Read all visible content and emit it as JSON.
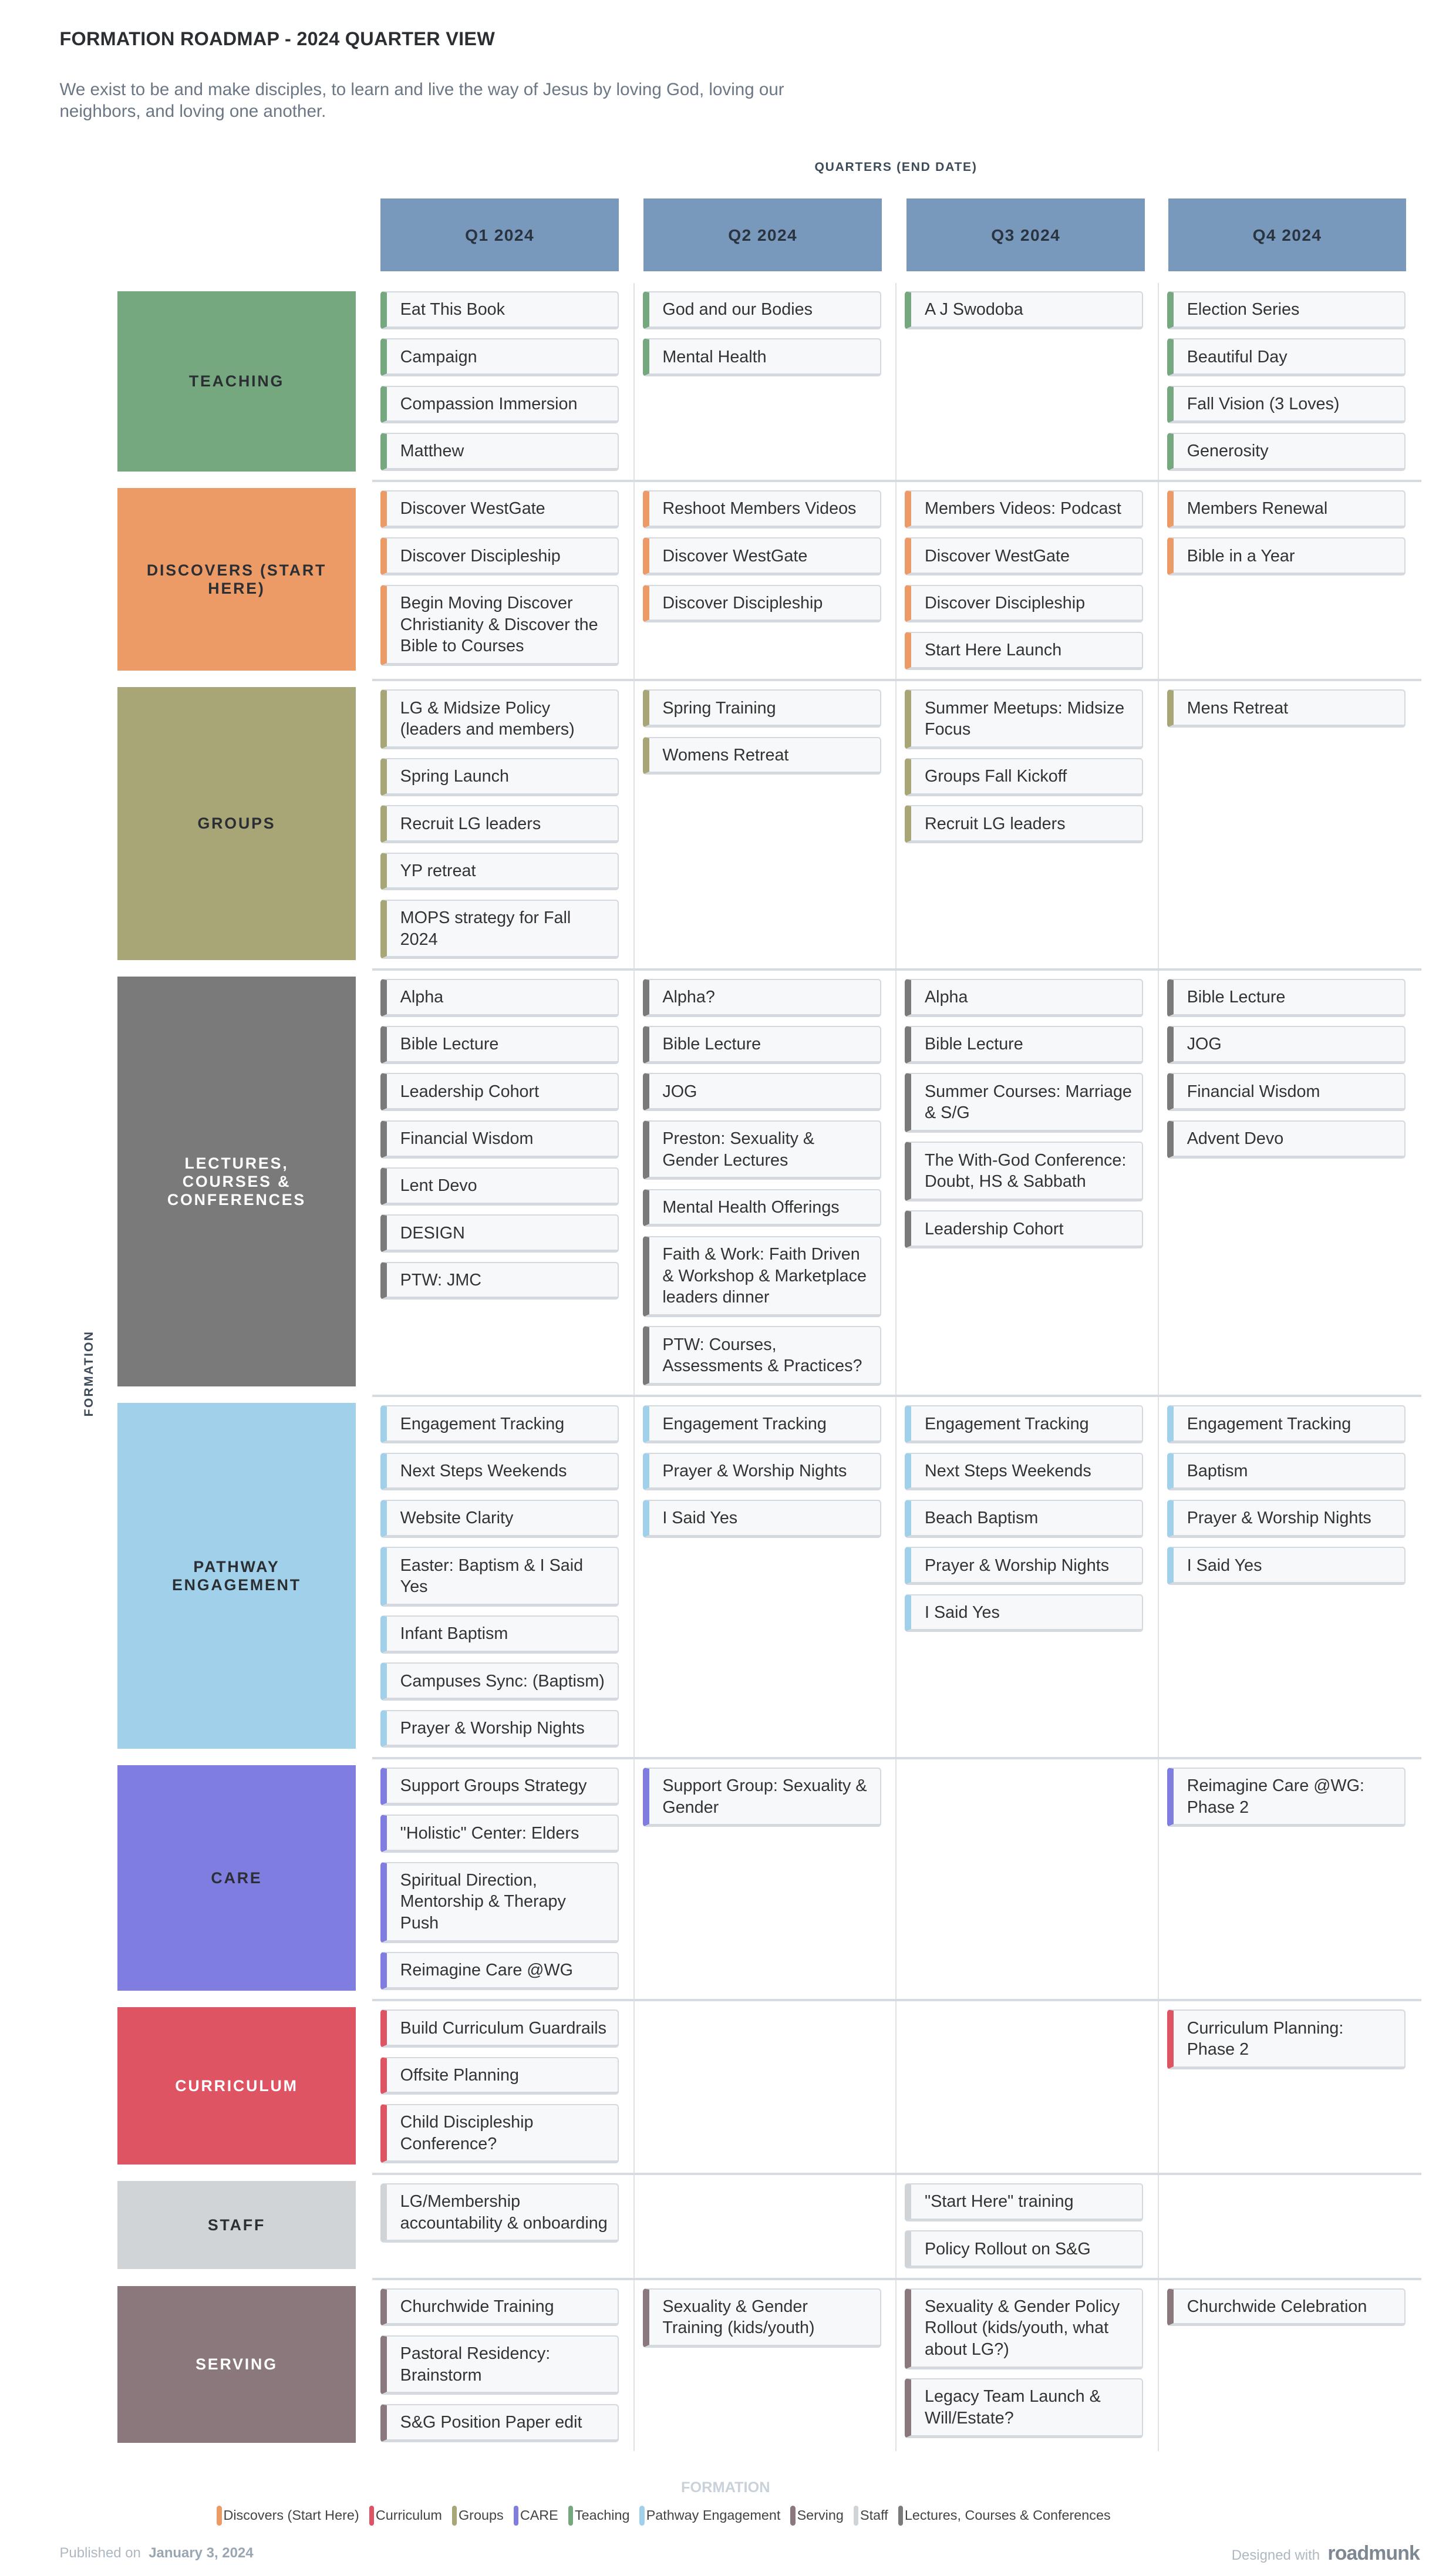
{
  "header": {
    "title": "FORMATION ROADMAP - 2024 QUARTER VIEW",
    "description": "We exist to be and make disciples, to learn and live the way of Jesus by loving God, loving our neighbors, and loving one another."
  },
  "quarters_caption": "QUARTERS (END DATE)",
  "quarters": [
    "Q1 2024",
    "Q2 2024",
    "Q3 2024",
    "Q4 2024"
  ],
  "quarter_color": "#7899bb",
  "vertical_label": "FORMATION",
  "rows": [
    {
      "label": "TEACHING",
      "color": "#76a880",
      "text_color": "#2b2f33",
      "cells": [
        [
          "Eat This Book",
          "Campaign",
          "Compassion Immersion",
          "Matthew"
        ],
        [
          "God and our Bodies",
          "Mental Health"
        ],
        [
          "A J Swodoba"
        ],
        [
          "Election Series",
          "Beautiful Day",
          "Fall Vision (3 Loves)",
          "Generosity"
        ]
      ]
    },
    {
      "label": "DISCOVERS (START HERE)",
      "color": "#ec9a66",
      "text_color": "#2b2f33",
      "cells": [
        [
          "Discover WestGate",
          "Discover Discipleship",
          "Begin Moving Discover Christianity & Discover the Bible to Courses"
        ],
        [
          "Reshoot Members Videos",
          "Discover WestGate",
          "Discover Discipleship"
        ],
        [
          "Members Videos: Podcast",
          "Discover WestGate",
          "Discover Discipleship",
          "Start Here Launch"
        ],
        [
          "Members Renewal",
          "Bible in a Year"
        ]
      ]
    },
    {
      "label": "GROUPS",
      "color": "#a8a577",
      "text_color": "#2b2f33",
      "cells": [
        [
          "LG & Midsize Policy (leaders and members)",
          "Spring Launch",
          "Recruit LG leaders",
          "YP retreat",
          "MOPS strategy for Fall 2024"
        ],
        [
          "Spring Training",
          "Womens Retreat"
        ],
        [
          "Summer Meetups: Midsize Focus",
          "Groups Fall Kickoff",
          "Recruit LG leaders"
        ],
        [
          "Mens Retreat"
        ]
      ]
    },
    {
      "label": "LECTURES, COURSES & CONFERENCES",
      "color": "#7a7a7a",
      "text_color": "#ffffff",
      "cells": [
        [
          "Alpha",
          "Bible Lecture",
          "Leadership Cohort",
          "Financial Wisdom",
          "Lent Devo",
          "DESIGN",
          "PTW: JMC"
        ],
        [
          "Alpha?",
          "Bible Lecture",
          "JOG",
          "Preston: Sexuality & Gender Lectures",
          "Mental Health Offerings",
          "Faith & Work: Faith Driven & Workshop & Marketplace leaders dinner",
          "PTW: Courses, Assessments & Practices?"
        ],
        [
          "Alpha",
          "Bible Lecture",
          "Summer Courses: Marriage & S/G",
          "The With-God Conference: Doubt, HS & Sabbath",
          "Leadership Cohort"
        ],
        [
          "Bible Lecture",
          "JOG",
          "Financial Wisdom",
          "Advent Devo"
        ]
      ]
    },
    {
      "label": "PATHWAY ENGAGEMENT",
      "color": "#a1d1ea",
      "text_color": "#2b2f33",
      "cells": [
        [
          "Engagement Tracking",
          "Next Steps Weekends",
          "Website Clarity",
          "Easter: Baptism & I Said Yes",
          "Infant Baptism",
          "Campuses Sync: (Baptism)",
          "Prayer & Worship Nights"
        ],
        [
          "Engagement Tracking",
          "Prayer & Worship Nights",
          "I Said Yes"
        ],
        [
          "Engagement Tracking",
          "Next Steps Weekends",
          "Beach Baptism",
          "Prayer & Worship Nights",
          "I Said Yes"
        ],
        [
          "Engagement Tracking",
          "Baptism",
          "Prayer & Worship Nights",
          "I Said Yes"
        ]
      ]
    },
    {
      "label": "CARE",
      "color": "#7f7ddf",
      "text_color": "#2b2f33",
      "cells": [
        [
          "Support Groups Strategy",
          "\"Holistic\" Center: Elders",
          "Spiritual Direction, Mentorship & Therapy Push",
          "Reimagine Care @WG"
        ],
        [
          "Support Group: Sexuality & Gender"
        ],
        [],
        [
          "Reimagine Care @WG: Phase 2"
        ]
      ]
    },
    {
      "label": "CURRICULUM",
      "color": "#de5462",
      "text_color": "#ffffff",
      "cells": [
        [
          "Build Curriculum Guardrails",
          "Offsite Planning",
          "Child Discipleship Conference?"
        ],
        [],
        [],
        [
          "Curriculum Planning: Phase 2"
        ]
      ]
    },
    {
      "label": "STAFF",
      "color": "#d0d4d7",
      "text_color": "#2b2f33",
      "cells": [
        [
          "LG/Membership accountability & onboarding"
        ],
        [],
        [
          "\"Start Here\" training",
          "Policy Rollout on S&G"
        ],
        []
      ]
    },
    {
      "label": "SERVING",
      "color": "#8a787c",
      "text_color": "#ffffff",
      "cells": [
        [
          "Churchwide Training",
          "Pastoral Residency: Brainstorm",
          "S&G Position Paper edit"
        ],
        [
          "Sexuality & Gender Training (kids/youth)"
        ],
        [
          "Sexuality & Gender Policy Rollout (kids/youth, what about LG?)",
          "Legacy Team Launch & Will/Estate?"
        ],
        [
          "Churchwide Celebration"
        ]
      ]
    }
  ],
  "footer": {
    "group_label": "FORMATION",
    "legend": [
      {
        "label": "Discovers (Start Here)",
        "color": "#ec9a66"
      },
      {
        "label": "Curriculum",
        "color": "#de5462"
      },
      {
        "label": "Groups",
        "color": "#a8a577"
      },
      {
        "label": "CARE",
        "color": "#7f7ddf"
      },
      {
        "label": "Teaching",
        "color": "#76a880"
      },
      {
        "label": "Pathway Engagement",
        "color": "#a1d1ea"
      },
      {
        "label": "Serving",
        "color": "#8a787c"
      },
      {
        "label": "Staff",
        "color": "#d0d4d7"
      },
      {
        "label": "Lectures, Courses & Conferences",
        "color": "#7a7a7a"
      }
    ],
    "published_prefix": "Published on",
    "published_date": "January 3, 2024",
    "designed_with": "Designed with",
    "brand": "roadmunk"
  }
}
